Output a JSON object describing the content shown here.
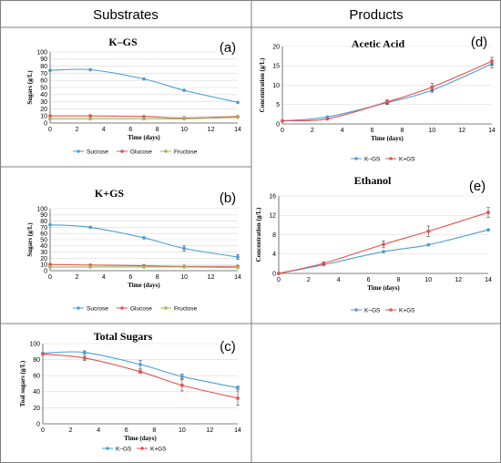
{
  "headers": {
    "left": "Substrates",
    "right": "Products"
  },
  "colors": {
    "blue": "#4a9fd8",
    "red": "#e8504a",
    "green": "#9bbb59",
    "grid": "#d9d9d9",
    "border": "#7f7f7f"
  },
  "chart_data": [
    {
      "id": "a",
      "panel_label": "(a)",
      "type": "line",
      "title": "K–GS",
      "xlabel": "Time (days)",
      "ylabel": "Sugars (g/L)",
      "xlim": [
        0,
        14
      ],
      "ylim": [
        0,
        100
      ],
      "xticks": [
        0,
        2,
        4,
        6,
        8,
        10,
        12,
        14
      ],
      "yticks": [
        0,
        10,
        20,
        30,
        40,
        50,
        60,
        70,
        80,
        90,
        100
      ],
      "grid": "horizontal",
      "legend_position": "bottom",
      "series": [
        {
          "name": "Sucrose",
          "color": "#4a9fd8",
          "x": [
            0,
            3,
            7,
            10,
            14
          ],
          "values": [
            74,
            75,
            62,
            46,
            29
          ],
          "err": [
            0,
            0,
            0,
            0,
            0
          ]
        },
        {
          "name": "Glucose",
          "color": "#e8504a",
          "x": [
            0,
            3,
            7,
            10,
            14
          ],
          "values": [
            10,
            10,
            9,
            7,
            9
          ],
          "err": [
            0,
            0,
            0,
            0,
            0
          ]
        },
        {
          "name": "Fructose",
          "color": "#9bbb59",
          "x": [
            0,
            3,
            7,
            10,
            14
          ],
          "values": [
            6,
            6,
            6,
            6,
            8
          ],
          "err": [
            0,
            0,
            0,
            0,
            0
          ]
        }
      ]
    },
    {
      "id": "b",
      "panel_label": "(b)",
      "type": "line",
      "title": "K+GS",
      "xlabel": "Time (days)",
      "ylabel": "Sugars (g/L)",
      "xlim": [
        0,
        14
      ],
      "ylim": [
        0,
        100
      ],
      "xticks": [
        0,
        2,
        4,
        6,
        8,
        10,
        12,
        14
      ],
      "yticks": [
        0,
        10,
        20,
        30,
        40,
        50,
        60,
        70,
        80,
        90,
        100
      ],
      "grid": "horizontal",
      "legend_position": "bottom",
      "series": [
        {
          "name": "Sucrose",
          "color": "#4a9fd8",
          "x": [
            0,
            3,
            7,
            10,
            14
          ],
          "values": [
            74,
            70,
            53,
            36,
            22
          ],
          "err": [
            0,
            0,
            0,
            4,
            4
          ]
        },
        {
          "name": "Glucose",
          "color": "#e8504a",
          "x": [
            0,
            3,
            7,
            10,
            14
          ],
          "values": [
            10,
            9,
            8,
            7,
            7
          ],
          "err": [
            0,
            0,
            0,
            0,
            0
          ]
        },
        {
          "name": "Fructose",
          "color": "#9bbb59",
          "x": [
            0,
            3,
            7,
            10,
            14
          ],
          "values": [
            6,
            6,
            6,
            6,
            5
          ],
          "err": [
            0,
            0,
            0,
            0,
            0
          ]
        }
      ]
    },
    {
      "id": "c",
      "panel_label": "(c)",
      "type": "line",
      "title": "Total Sugars",
      "xlabel": "Time (days)",
      "ylabel": "Toal sugars (g/L)",
      "xlim": [
        0,
        14
      ],
      "ylim": [
        0,
        100
      ],
      "xticks": [
        0,
        2,
        4,
        6,
        8,
        10,
        12,
        14
      ],
      "yticks": [
        0,
        20,
        40,
        60,
        80,
        100
      ],
      "grid": "horizontal",
      "legend_position": "bottom",
      "series": [
        {
          "name": "K–GS",
          "color": "#4a9fd8",
          "x": [
            0,
            3,
            7,
            10,
            14
          ],
          "values": [
            88,
            89,
            74,
            59,
            45
          ],
          "err": [
            0,
            2,
            5,
            3,
            2
          ]
        },
        {
          "name": "K+GS",
          "color": "#e8504a",
          "x": [
            0,
            3,
            7,
            10,
            14
          ],
          "values": [
            87,
            82,
            65,
            48,
            32
          ],
          "err": [
            0,
            3,
            2,
            7,
            9
          ]
        }
      ]
    },
    {
      "id": "d",
      "panel_label": "(d)",
      "type": "line",
      "title": "Acetic Acid",
      "xlabel": "Time (days)",
      "ylabel": "Concentration (g/L)",
      "xlim": [
        0,
        14
      ],
      "ylim": [
        0,
        20
      ],
      "xticks": [
        0,
        2,
        4,
        6,
        8,
        10,
        12,
        14
      ],
      "yticks": [
        0,
        5,
        10,
        15,
        20
      ],
      "grid": "horizontal",
      "legend_position": "bottom",
      "series": [
        {
          "name": "K–GS",
          "color": "#4a9fd8",
          "x": [
            0,
            3,
            7,
            10,
            14
          ],
          "values": [
            0.8,
            1.8,
            5.5,
            8.7,
            15.5
          ],
          "err": [
            0,
            0,
            0.5,
            0.5,
            1
          ]
        },
        {
          "name": "K+GS",
          "color": "#e8504a",
          "x": [
            0,
            3,
            7,
            10,
            14
          ],
          "values": [
            0.8,
            1.3,
            5.7,
            9.5,
            16.2
          ],
          "err": [
            0,
            0,
            0.5,
            1,
            1
          ]
        }
      ]
    },
    {
      "id": "e",
      "panel_label": "(e)",
      "type": "line",
      "title": "Ethanol",
      "xlabel": "Time (days)",
      "ylabel": "Concentration (g/L)",
      "xlim": [
        0,
        14
      ],
      "ylim": [
        0,
        16
      ],
      "xticks": [
        0,
        2,
        4,
        6,
        8,
        10,
        12,
        14
      ],
      "yticks": [
        0,
        4,
        8,
        12,
        16
      ],
      "grid": "horizontal",
      "legend_position": "bottom",
      "series": [
        {
          "name": "K–GS",
          "color": "#4a9fd8",
          "x": [
            0,
            3,
            7,
            10,
            14
          ],
          "values": [
            0,
            1.8,
            4.5,
            5.9,
            9.0
          ],
          "err": [
            0,
            0,
            0,
            0,
            0
          ]
        },
        {
          "name": "K+GS",
          "color": "#e8504a",
          "x": [
            0,
            3,
            7,
            10,
            14
          ],
          "values": [
            0,
            2.1,
            6.0,
            8.7,
            12.6
          ],
          "err": [
            0,
            0.3,
            0.7,
            1.1,
            1.0
          ]
        }
      ]
    }
  ]
}
